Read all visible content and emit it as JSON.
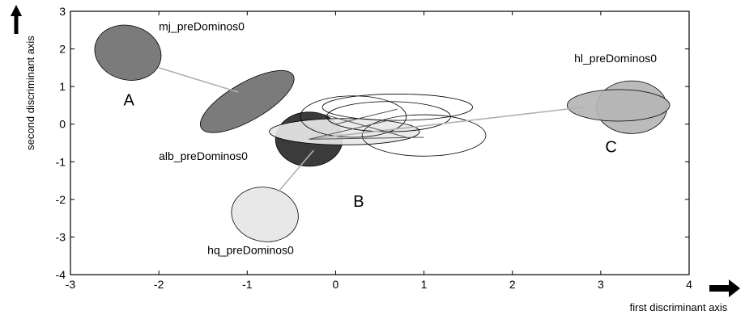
{
  "chart_data": {
    "type": "scatter",
    "xlabel": "first discriminant axis",
    "ylabel": "second discriminant axis",
    "xlim": [
      -3,
      4
    ],
    "ylim": [
      -4,
      3
    ],
    "x_ticks": [
      "-3",
      "-2",
      "-1",
      "0",
      "1",
      "2",
      "3",
      "4"
    ],
    "y_ticks": [
      "3",
      "2",
      "1",
      "0",
      "-1",
      "-2",
      "-3",
      "-4"
    ],
    "grid": false,
    "group_labels": [
      {
        "text": "A",
        "x": -2.4,
        "y": 0.5
      },
      {
        "text": "B",
        "x": 0.2,
        "y": -2.2
      },
      {
        "text": "C",
        "x": 3.05,
        "y": -0.75
      }
    ],
    "series": [
      {
        "name": "mj_preDominos0",
        "label_x": -2.0,
        "label_y": 2.5,
        "ellipses": [
          {
            "cx": -2.35,
            "cy": 1.9,
            "rx": 0.38,
            "ry": 0.72,
            "angle": -15,
            "fill": "#707070"
          },
          {
            "cx": -1.0,
            "cy": 0.6,
            "rx": 0.6,
            "ry": 0.5,
            "angle": 30,
            "fill": "#707070"
          }
        ],
        "links": [
          [
            -2.0,
            1.5,
            -1.1,
            0.85
          ]
        ]
      },
      {
        "name": "alb_preDominos0",
        "label_x": -2.0,
        "label_y": -0.95,
        "ellipses": [
          {
            "cx": -0.3,
            "cy": -0.4,
            "rx": 0.38,
            "ry": 0.72,
            "angle": 0,
            "fill": "#2a2a2a"
          },
          {
            "cx": 0.1,
            "cy": -0.2,
            "rx": 0.85,
            "ry": 0.35,
            "angle": 0,
            "fill": "#e8e8e8"
          }
        ],
        "links": []
      },
      {
        "name": "hq_preDominos0",
        "label_x": -1.45,
        "label_y": -3.45,
        "ellipses": [
          {
            "cx": -0.8,
            "cy": -2.4,
            "rx": 0.38,
            "ry": 0.72,
            "angle": -10,
            "fill": "#e6e6e6"
          }
        ],
        "links": [
          [
            -0.65,
            -1.8,
            -0.25,
            -0.7
          ]
        ]
      },
      {
        "name": "hl_preDominos0",
        "label_x": 2.7,
        "label_y": 1.65,
        "ellipses": [
          {
            "cx": 3.35,
            "cy": 0.45,
            "rx": 0.4,
            "ry": 0.7,
            "angle": 0,
            "fill": "#b5b5b5"
          },
          {
            "cx": 3.2,
            "cy": 0.5,
            "rx": 0.58,
            "ry": 0.42,
            "angle": 0,
            "fill": "#b5b5b5"
          }
        ],
        "links": [
          [
            -0.3,
            -0.4,
            2.8,
            0.45
          ]
        ]
      },
      {
        "name": "",
        "label_x": null,
        "label_y": null,
        "ellipses": [
          {
            "cx": 0.7,
            "cy": 0.45,
            "rx": 0.85,
            "ry": 0.35,
            "angle": 0,
            "fill": "none"
          },
          {
            "cx": 0.2,
            "cy": 0.2,
            "rx": 0.6,
            "ry": 0.55,
            "angle": 0,
            "fill": "none"
          },
          {
            "cx": 1.0,
            "cy": -0.3,
            "rx": 0.7,
            "ry": 0.55,
            "angle": 0,
            "fill": "none"
          },
          {
            "cx": 0.6,
            "cy": 0.2,
            "rx": 0.7,
            "ry": 0.4,
            "angle": 0,
            "fill": "none"
          }
        ],
        "links": [
          [
            -0.3,
            -0.4,
            1.0,
            -0.35
          ],
          [
            -0.2,
            0.3,
            0.8,
            -0.35
          ],
          [
            0.0,
            0.0,
            0.7,
            0.4
          ],
          [
            -0.3,
            -0.4,
            0.6,
            0.1
          ]
        ]
      }
    ]
  }
}
